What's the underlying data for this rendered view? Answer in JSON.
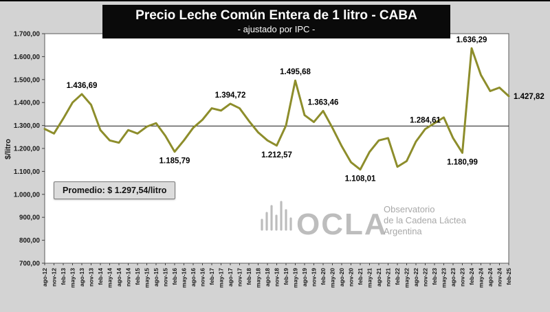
{
  "title": "Precio Leche Común Entera de 1 litro - CABA",
  "subtitle": "- ajustado por IPC -",
  "average_box": "Promedio: $ 1.297,54/litro",
  "watermark": {
    "logo": "OCLA",
    "lines": [
      "Observatorio",
      "de la Cadena Láctea",
      "Argentina"
    ]
  },
  "chart_data": {
    "type": "line",
    "title": "Precio Leche Común Entera de 1 litro - CABA",
    "subtitle": "- ajustado por IPC -",
    "xlabel": "",
    "ylabel": "$/litro",
    "ylim": [
      700,
      1700
    ],
    "grid": false,
    "legend": "none",
    "line_color": "#8d8d2b",
    "average": 1297.54,
    "average_label": "Promedio: $ 1.297,54/litro",
    "yticks": [
      {
        "value": 1700,
        "label": "1.700,00"
      },
      {
        "value": 1600,
        "label": "1.600,00"
      },
      {
        "value": 1500,
        "label": "1.500,00"
      },
      {
        "value": 1400,
        "label": "1.400,00"
      },
      {
        "value": 1300,
        "label": "1.300,00"
      },
      {
        "value": 1200,
        "label": "1.200,00"
      },
      {
        "value": 1100,
        "label": "1.100,00"
      },
      {
        "value": 1000,
        "label": "1.000,00"
      },
      {
        "value": 900,
        "label": "900,00"
      },
      {
        "value": 800,
        "label": "800,00"
      },
      {
        "value": 700,
        "label": "700,00"
      }
    ],
    "categories": [
      "ago-12",
      "nov-12",
      "feb-13",
      "may-13",
      "ago-13",
      "nov-13",
      "feb-14",
      "may-14",
      "ago-14",
      "nov-14",
      "feb-15",
      "may-15",
      "ago-15",
      "nov-15",
      "feb-16",
      "may-16",
      "ago-16",
      "nov-16",
      "feb-17",
      "may-17",
      "ago-17",
      "nov-17",
      "feb-18",
      "may-18",
      "ago-18",
      "nov-18",
      "feb-19",
      "may-19",
      "ago-19",
      "nov-19",
      "feb-20",
      "may-20",
      "ago-20",
      "nov-20",
      "feb-21",
      "may-21",
      "ago-21",
      "nov-21",
      "feb-22",
      "may-22",
      "ago-22",
      "nov-22",
      "feb-23",
      "may-23",
      "ago-23",
      "nov-23",
      "feb-24",
      "may-24",
      "ago-24",
      "nov-24",
      "feb-25"
    ],
    "values": [
      1285,
      1265,
      1330,
      1400,
      1436.69,
      1390,
      1280,
      1235,
      1225,
      1280,
      1265,
      1295,
      1310,
      1255,
      1185.79,
      1235,
      1290,
      1325,
      1375,
      1365,
      1394.72,
      1375,
      1320,
      1270,
      1235,
      1212.57,
      1300,
      1495.68,
      1345,
      1315,
      1363.46,
      1290,
      1210,
      1140,
      1108.01,
      1185,
      1235,
      1245,
      1120,
      1145,
      1230,
      1284.61,
      1310,
      1335,
      1245,
      1180.99,
      1636.29,
      1520,
      1450,
      1465,
      1427.82
    ],
    "annotations": [
      {
        "index": 4,
        "label": "1.436,69",
        "pos": "above"
      },
      {
        "index": 14,
        "label": "1.185,79",
        "pos": "below"
      },
      {
        "index": 20,
        "label": "1.394,72",
        "pos": "above"
      },
      {
        "index": 25,
        "label": "1.212,57",
        "pos": "below"
      },
      {
        "index": 27,
        "label": "1.495,68",
        "pos": "above"
      },
      {
        "index": 30,
        "label": "1.363,46",
        "pos": "above"
      },
      {
        "index": 34,
        "label": "1.108,01",
        "pos": "below"
      },
      {
        "index": 41,
        "label": "1.284,61",
        "pos": "above"
      },
      {
        "index": 45,
        "label": "1.180,99",
        "pos": "below"
      },
      {
        "index": 46,
        "label": "1.636,29",
        "pos": "above"
      },
      {
        "index": 50,
        "label": "1.427,82",
        "pos": "right"
      }
    ]
  }
}
